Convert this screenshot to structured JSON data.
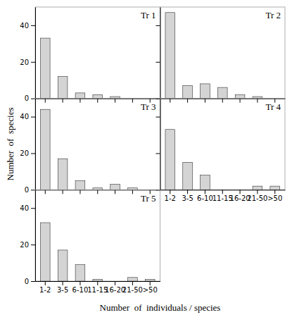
{
  "chart_data": [
    {
      "type": "bar",
      "title": "Tr 1",
      "categories": [
        "1-2",
        "3-5",
        "6-10",
        "11-15",
        "16-20",
        "21-50",
        ">50"
      ],
      "values": [
        33,
        12,
        3,
        2,
        1,
        0,
        0
      ],
      "color": "#d4d4d4",
      "ylim": [
        0,
        50
      ],
      "yticks": [
        0,
        20,
        40
      ],
      "tick_labels": "y",
      "ylabel": "Number  of  species"
    },
    {
      "type": "bar",
      "title": "Tr 2",
      "categories": [
        "1-2",
        "3-5",
        "6-10",
        "11-15",
        "16-20",
        "21-50",
        ">50"
      ],
      "values": [
        47,
        7,
        8,
        6,
        2,
        1,
        0
      ],
      "color": "#d4d4d4",
      "ylim": [
        0,
        50
      ],
      "yticks": [
        0,
        20,
        40
      ],
      "tick_labels": false
    },
    {
      "type": "bar",
      "title": "Tr 3",
      "categories": [
        "1-2",
        "3-5",
        "6-10",
        "11-15",
        "16-20",
        "21-50",
        ">50"
      ],
      "values": [
        44,
        17,
        5,
        1,
        3,
        1,
        0
      ],
      "color": "#d4d4d4",
      "ylim": [
        0,
        50
      ],
      "yticks": [
        0,
        20,
        40
      ],
      "tick_labels": "y"
    },
    {
      "type": "bar",
      "title": "Tr 4",
      "categories": [
        "1-2",
        "3-5",
        "6-10",
        "11-15",
        "16-20",
        "21-50",
        ">50"
      ],
      "values": [
        33,
        15,
        8,
        0,
        0,
        2,
        2
      ],
      "color": "#d4d4d4",
      "ylim": [
        0,
        50
      ],
      "yticks": [
        0,
        20,
        40
      ],
      "tick_labels": "x"
    },
    {
      "type": "bar",
      "title": "Tr 5",
      "categories": [
        "1-2",
        "3-5",
        "6-10",
        "11-15",
        "16-20",
        "21-50",
        ">50"
      ],
      "values": [
        32,
        17,
        9,
        1,
        0,
        2,
        1
      ],
      "color": "#d4d4d4",
      "ylim": [
        0,
        50
      ],
      "yticks": [
        0,
        20,
        40
      ],
      "xlabel": "Number  of  individuals / species"
    }
  ]
}
